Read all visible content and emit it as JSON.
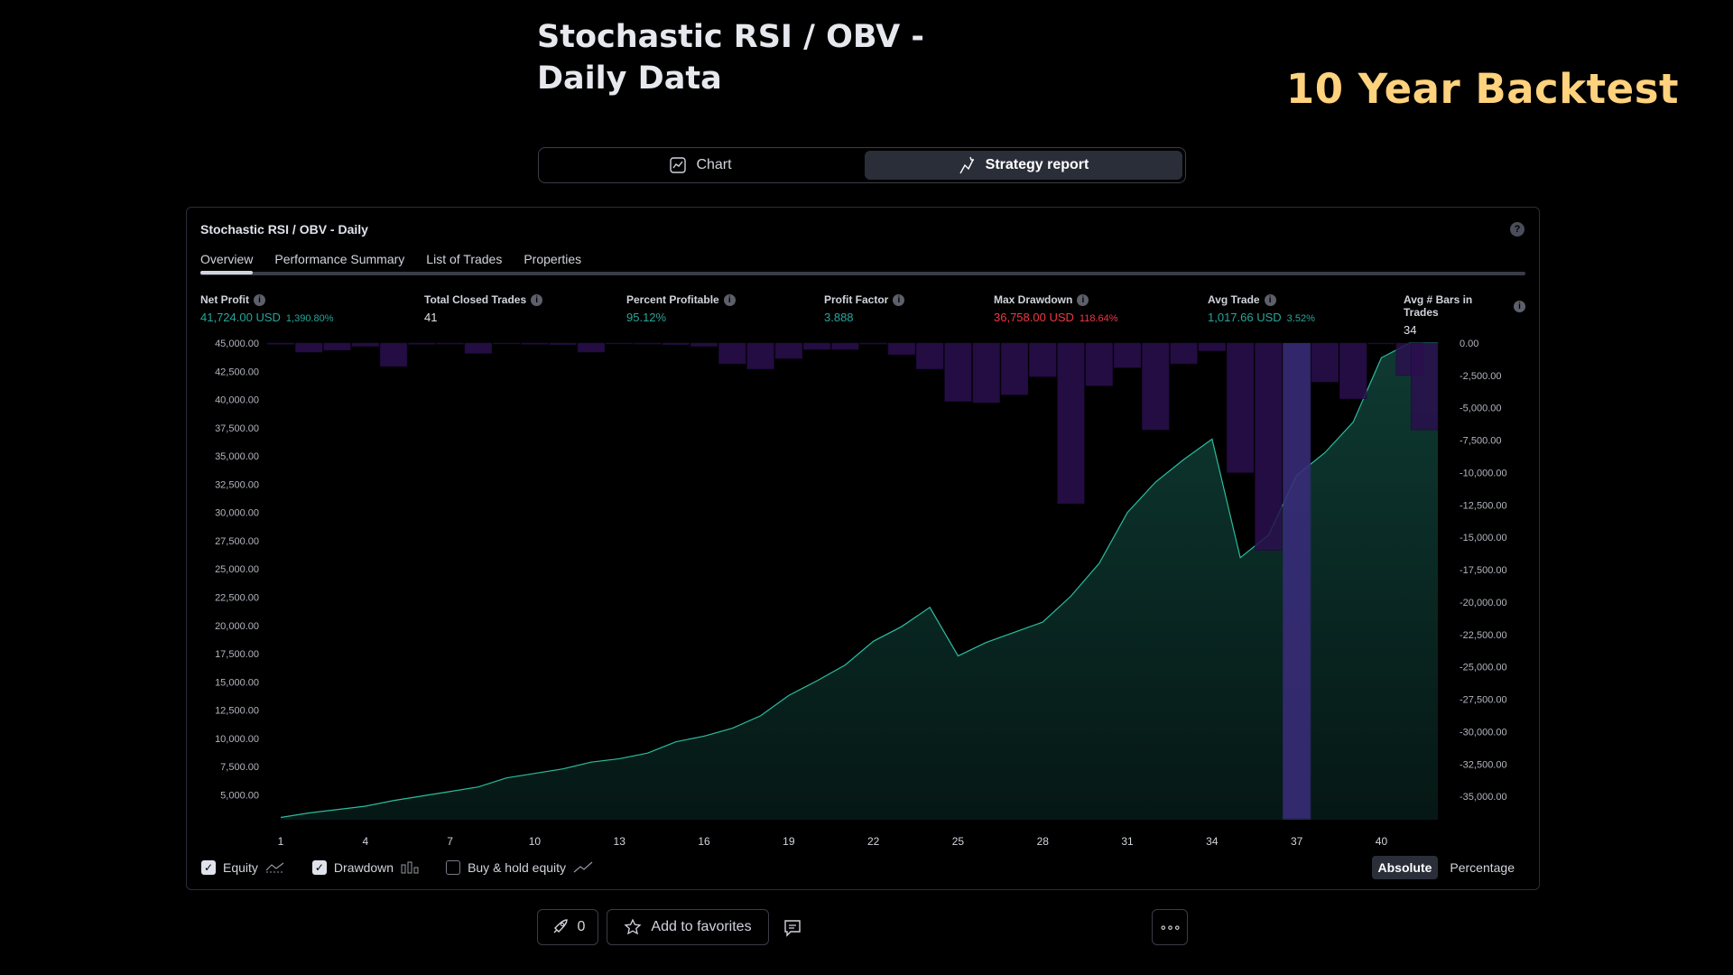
{
  "header": {
    "title": "Stochastic RSI / OBV - Daily Data",
    "overlay": "10 Year Backtest"
  },
  "view_tabs": [
    {
      "label": "Chart",
      "icon": "chart-icon",
      "active": false
    },
    {
      "label": "Strategy report",
      "icon": "strategy-icon",
      "active": true
    }
  ],
  "report": {
    "title": "Stochastic RSI / OBV - Daily",
    "tabs": [
      "Overview",
      "Performance Summary",
      "List of Trades",
      "Properties"
    ],
    "active_tab": "Overview",
    "metrics": [
      {
        "label": "Net Profit",
        "value": "41,724.00 USD",
        "sub": "1,390.80%",
        "color": "green"
      },
      {
        "label": "Total Closed Trades",
        "value": "41",
        "sub": "",
        "color": "white"
      },
      {
        "label": "Percent Profitable",
        "value": "95.12%",
        "sub": "",
        "color": "green"
      },
      {
        "label": "Profit Factor",
        "value": "3.888",
        "sub": "",
        "color": "green"
      },
      {
        "label": "Max Drawdown",
        "value": "36,758.00 USD",
        "sub": "118.64%",
        "color": "red"
      },
      {
        "label": "Avg Trade",
        "value": "1,017.66 USD",
        "sub": "3.52%",
        "color": "green"
      },
      {
        "label": "Avg # Bars in Trades",
        "value": "34",
        "sub": "",
        "color": "white"
      }
    ],
    "legend": [
      {
        "label": "Equity",
        "checked": true,
        "icon": "equity-line-icon"
      },
      {
        "label": "Drawdown",
        "checked": true,
        "icon": "drawdown-bars-icon"
      },
      {
        "label": "Buy & hold equity",
        "checked": false,
        "icon": "buy-hold-line-icon"
      }
    ],
    "modes": [
      "Absolute",
      "Percentage"
    ],
    "active_mode": "Absolute"
  },
  "footer": {
    "boost_count": "0",
    "favorites_label": "Add to favorites",
    "more_label": "∘∘∘"
  },
  "chart_data": {
    "type": "area",
    "x": [
      1,
      2,
      3,
      4,
      5,
      6,
      7,
      8,
      9,
      10,
      11,
      12,
      13,
      14,
      15,
      16,
      17,
      18,
      19,
      20,
      21,
      22,
      23,
      24,
      25,
      26,
      27,
      28,
      29,
      30,
      31,
      32,
      33,
      34,
      35,
      36,
      37,
      38,
      39,
      40,
      41,
      42
    ],
    "x_ticks": [
      "1",
      "4",
      "7",
      "10",
      "13",
      "16",
      "19",
      "22",
      "25",
      "28",
      "31",
      "34",
      "37",
      "40"
    ],
    "left_axis": {
      "ticks": [
        "45,000.00",
        "42,500.00",
        "40,000.00",
        "37,500.00",
        "35,000.00",
        "32,500.00",
        "30,000.00",
        "27,500.00",
        "25,000.00",
        "22,500.00",
        "20,000.00",
        "17,500.00",
        "15,000.00",
        "12,500.00",
        "10,000.00",
        "7,500.00",
        "5,000.00"
      ],
      "range": [
        2800,
        45000
      ]
    },
    "right_axis": {
      "ticks": [
        "0.00",
        "-2,500.00",
        "-5,000.00",
        "-7,500.00",
        "-10,000.00",
        "-12,500.00",
        "-15,000.00",
        "-17,500.00",
        "-20,000.00",
        "-22,500.00",
        "-25,000.00",
        "-27,500.00",
        "-30,000.00",
        "-32,500.00",
        "-35,000.00"
      ],
      "range": [
        -36800,
        0
      ]
    },
    "series": [
      {
        "name": "Equity",
        "axis": "left",
        "color": "#2bbd9e",
        "values": [
          3000,
          3400,
          3700,
          4000,
          4500,
          4900,
          5300,
          5700,
          6500,
          6900,
          7300,
          7900,
          8200,
          8700,
          9700,
          10200,
          10900,
          12000,
          13800,
          15100,
          16500,
          18600,
          19900,
          21600,
          17300,
          18500,
          19400,
          20300,
          22600,
          25500,
          30000,
          32700,
          34700,
          36500,
          26000,
          28000,
          33300,
          35300,
          38000,
          43700,
          45000,
          46500
        ]
      },
      {
        "name": "Drawdown",
        "axis": "right",
        "color": "#2a0f4e",
        "values": [
          -100,
          -700,
          -550,
          -250,
          -1800,
          -100,
          -80,
          -800,
          -50,
          -100,
          -120,
          -700,
          -50,
          -80,
          -120,
          -250,
          -1600,
          -2000,
          -1200,
          -500,
          -500,
          -80,
          -900,
          -2000,
          -4500,
          -4600,
          -4000,
          -2600,
          -12400,
          -3300,
          -1900,
          -6700,
          -1600,
          -600,
          -10000,
          -16000,
          -36700,
          -3000,
          -4300,
          -40,
          -2500,
          -6700
        ]
      }
    ]
  }
}
